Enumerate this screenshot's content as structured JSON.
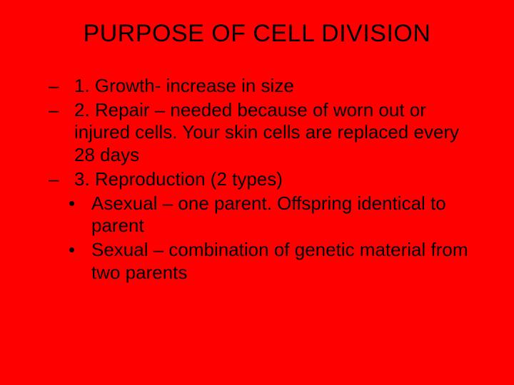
{
  "slide": {
    "background_color": "#ff0000",
    "text_color": "#000000",
    "font_family": "Comic Sans MS",
    "title_fontsize": 34,
    "body_fontsize": 26,
    "title": "PURPOSE OF CELL DIVISION",
    "bullets_lvl1": {
      "marker": "–",
      "item1": "1.  Growth- increase in size",
      "item2": "2.  Repair – needed because of worn out or injured cells. Your skin cells are replaced every 28 days",
      "item3": "3.  Reproduction (2 types)"
    },
    "bullets_lvl2": {
      "marker": "•",
      "item1": "Asexual – one parent.  Offspring identical to parent",
      "item2": "Sexual – combination of genetic material from two parents"
    }
  }
}
